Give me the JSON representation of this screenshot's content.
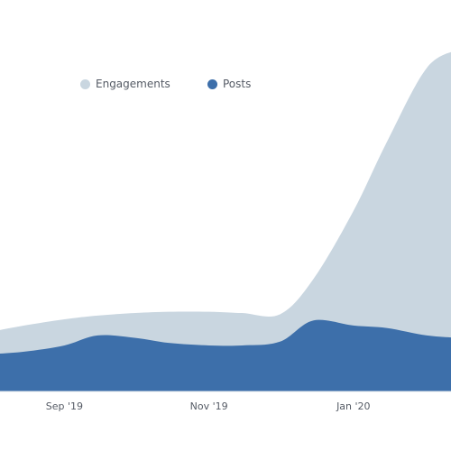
{
  "chart_data": {
    "type": "area",
    "x": [
      "2019-08-01",
      "2019-08-15",
      "2019-09-01",
      "2019-09-15",
      "2019-10-01",
      "2019-10-15",
      "2019-11-01",
      "2019-11-15",
      "2019-12-01",
      "2019-12-15",
      "2020-01-01",
      "2020-01-15",
      "2020-02-01",
      "2020-02-15"
    ],
    "x_ticks": [
      "Sep '19",
      "Nov '19",
      "Jan '20"
    ],
    "series": [
      {
        "name": "Engagements",
        "color": "#c9d6e0",
        "values": [
          48,
          53,
          58,
          61,
          63,
          64,
          64,
          63,
          62,
          90,
          145,
          200,
          260,
          275
        ]
      },
      {
        "name": "Posts",
        "color": "#3d6faa",
        "values": [
          30,
          32,
          37,
          45,
          43,
          39,
          37,
          37,
          40,
          57,
          53,
          51,
          45,
          43
        ]
      }
    ],
    "ylim": [
      0,
      300
    ],
    "grid": false,
    "legend_position": "top"
  }
}
